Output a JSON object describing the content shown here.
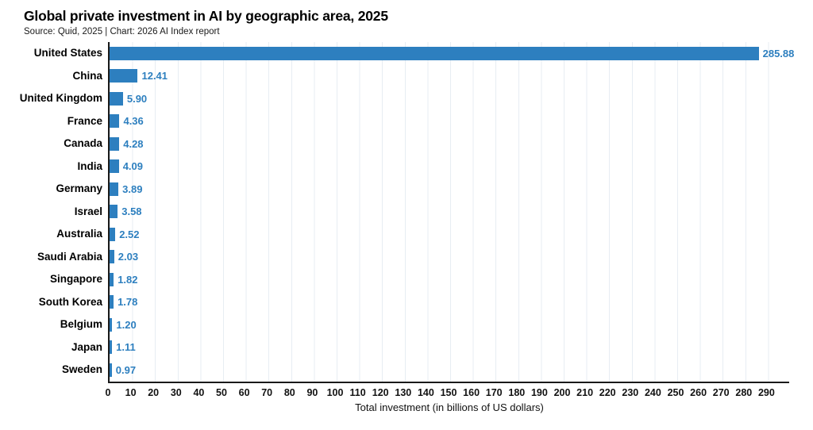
{
  "chart_data": {
    "type": "bar",
    "orientation": "horizontal",
    "title": "Global private investment in AI by geographic area, 2025",
    "subtitle": "Source: Quid, 2025 | Chart: 2026 AI Index report",
    "categories": [
      "United States",
      "China",
      "United Kingdom",
      "France",
      "Canada",
      "India",
      "Germany",
      "Israel",
      "Australia",
      "Saudi Arabia",
      "Singapore",
      "South Korea",
      "Belgium",
      "Japan",
      "Sweden"
    ],
    "values": [
      285.88,
      12.41,
      5.9,
      4.36,
      4.28,
      4.09,
      3.89,
      3.58,
      2.52,
      2.03,
      1.82,
      1.78,
      1.2,
      1.11,
      0.97
    ],
    "value_labels": [
      "285.88",
      "12.41",
      "5.90",
      "4.36",
      "4.28",
      "4.09",
      "3.89",
      "3.58",
      "2.52",
      "2.03",
      "1.82",
      "1.78",
      "1.20",
      "1.11",
      "0.97"
    ],
    "xlabel": "Total investment (in billions of US dollars)",
    "xlim": [
      0,
      300
    ],
    "x_ticks": [
      0,
      10,
      20,
      30,
      40,
      50,
      60,
      70,
      80,
      90,
      100,
      110,
      120,
      130,
      140,
      150,
      160,
      170,
      180,
      190,
      200,
      210,
      220,
      230,
      240,
      250,
      260,
      270,
      280,
      290
    ],
    "grid": true,
    "gridline_color": "#e7edf3",
    "bar_color": "#2d7fbf",
    "value_label_color": "#2d7fbf",
    "axis_color": "#1a1a1a",
    "legend": "none"
  }
}
